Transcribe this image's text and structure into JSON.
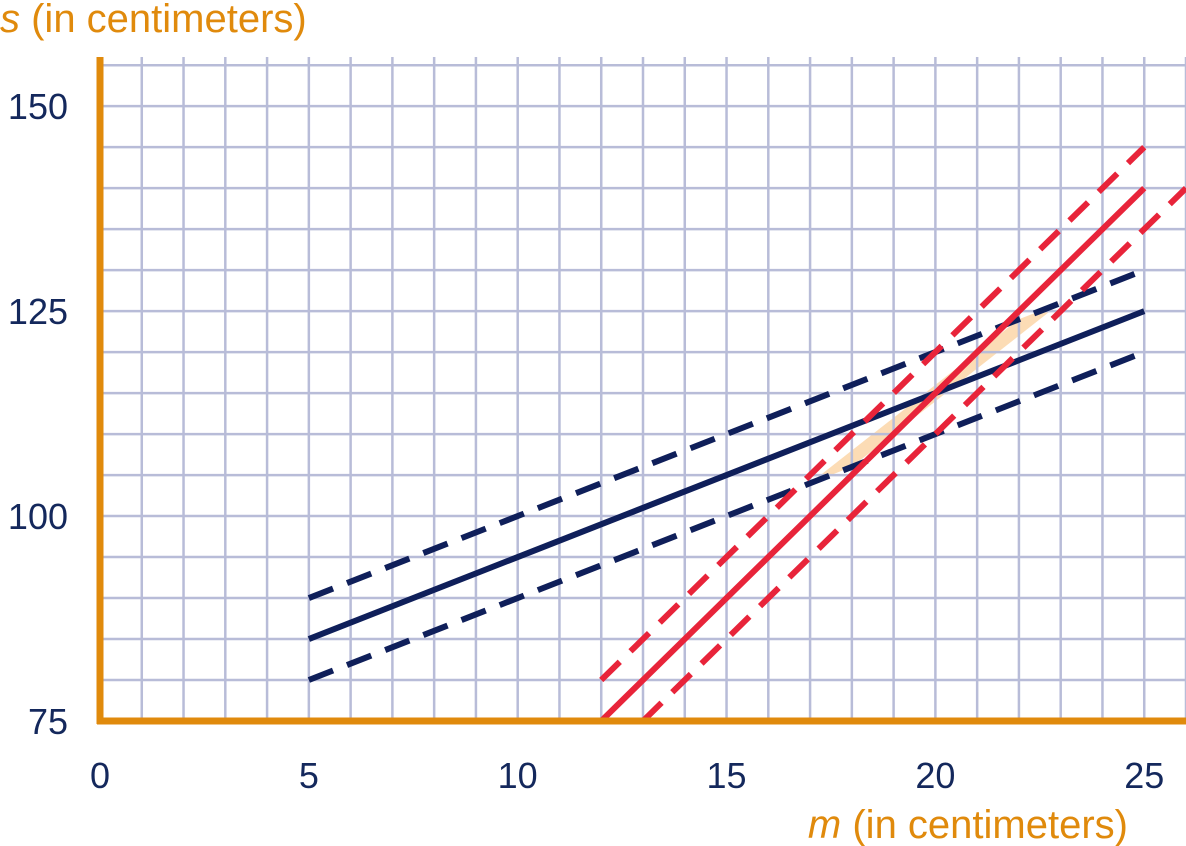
{
  "chart_data": {
    "type": "line",
    "xlabel": {
      "var": "m",
      "rest": " (in centimeters)"
    },
    "ylabel": {
      "var": "s",
      "rest": " (in centimeters)"
    },
    "xlim": [
      0,
      26
    ],
    "ylim": [
      75,
      156
    ],
    "x_ticks": [
      "0",
      "5",
      "10",
      "15",
      "20",
      "25"
    ],
    "y_ticks": [
      "75",
      "100",
      "125",
      "150"
    ],
    "grid": true,
    "grid_step_x": 1,
    "grid_step_y": 5,
    "series": [
      {
        "color": "#0f1f5a",
        "style": "solid",
        "x": [
          5,
          25
        ],
        "y": [
          85,
          125
        ]
      },
      {
        "color": "#0f1f5a",
        "style": "dashed",
        "x": [
          5,
          25
        ],
        "y": [
          90,
          130
        ]
      },
      {
        "color": "#0f1f5a",
        "style": "dashed",
        "x": [
          5,
          25
        ],
        "y": [
          80,
          120
        ]
      },
      {
        "color": "#e8243a",
        "style": "solid",
        "x": [
          12,
          25
        ],
        "y": [
          75,
          140
        ]
      },
      {
        "color": "#e8243a",
        "style": "dashed",
        "x": [
          12,
          25
        ],
        "y": [
          80,
          145
        ]
      },
      {
        "color": "#e8243a",
        "style": "dashed",
        "x": [
          13,
          26
        ],
        "y": [
          75,
          140
        ]
      }
    ],
    "highlight_region": {
      "color": "#fbd6a8",
      "points": [
        [
          17,
          104
        ],
        [
          22,
          124
        ],
        [
          23,
          126
        ],
        [
          18,
          106
        ]
      ]
    },
    "colors": {
      "axis": "#e08a0c",
      "grid": "#b8bcd8",
      "tick_text": "#14285c"
    }
  }
}
